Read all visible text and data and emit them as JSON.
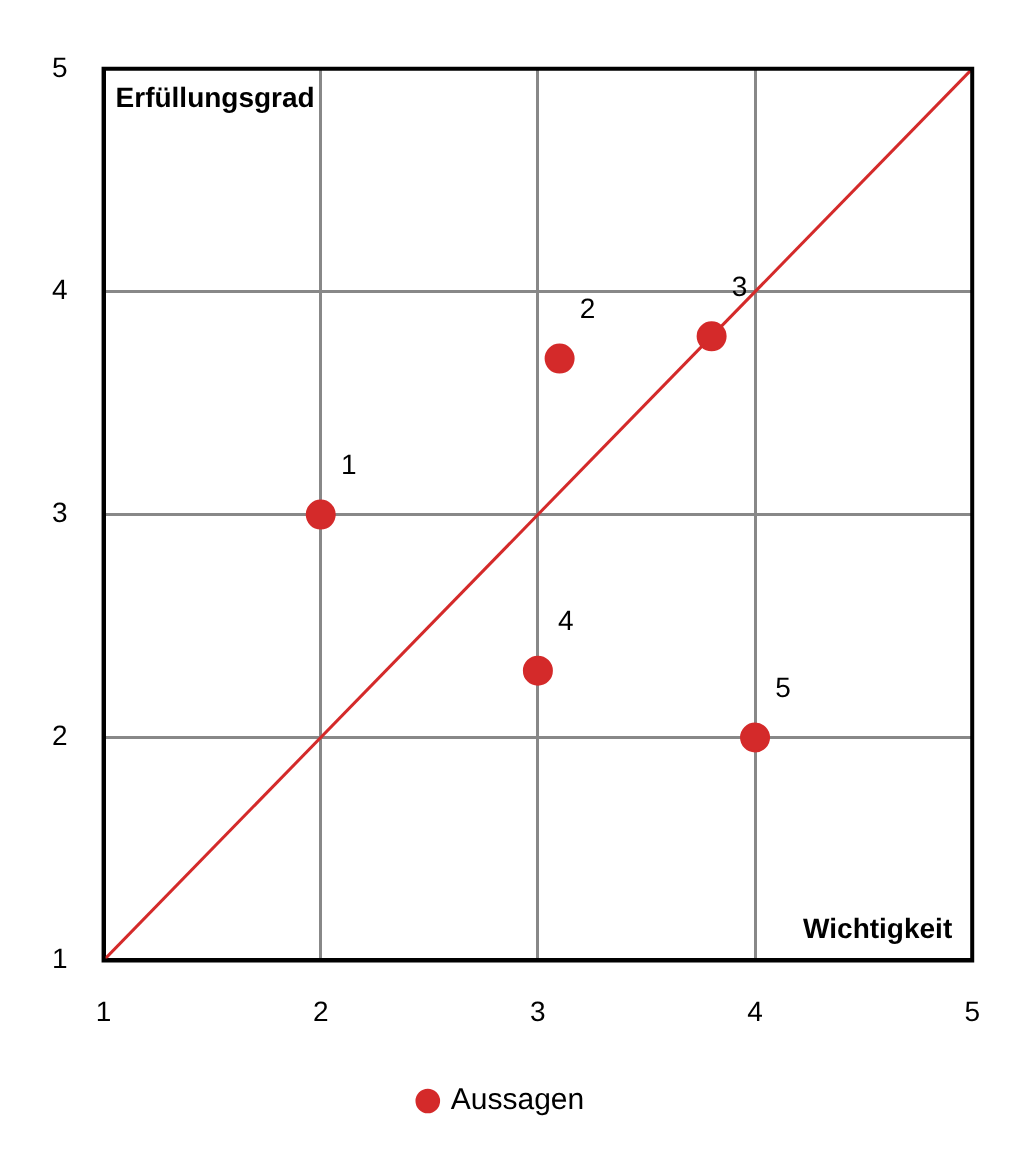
{
  "chart_data": {
    "type": "scatter",
    "xlabel": "Wichtigkeit",
    "ylabel": "Erfüllungsgrad",
    "x": [
      2,
      3.1,
      3.8,
      3,
      4
    ],
    "series": [
      {
        "name": "Aussagen",
        "color": "#d42a2a",
        "values": [
          3,
          3.7,
          3.8,
          2.3,
          2
        ],
        "marker": "circle"
      },
      {
        "type": "line",
        "color": "#d42a2a",
        "x": [
          1,
          5
        ],
        "values": [
          1,
          5
        ],
        "marker": "none"
      }
    ],
    "annotations": [
      {
        "text": "1",
        "x": 2,
        "y": 3
      },
      {
        "text": "2",
        "x": 3.1,
        "y": 3.7
      },
      {
        "text": "3",
        "x": 3.8,
        "y": 3.8
      },
      {
        "text": "4",
        "x": 3,
        "y": 2.3
      },
      {
        "text": "5",
        "x": 4,
        "y": 2
      }
    ],
    "xlim": [
      1,
      5
    ],
    "ylim": [
      1,
      5
    ],
    "xticks": [
      1,
      2,
      3,
      4,
      5
    ],
    "yticks": [
      1,
      2,
      3,
      4,
      5
    ],
    "grid": true,
    "legend": "bottom"
  }
}
